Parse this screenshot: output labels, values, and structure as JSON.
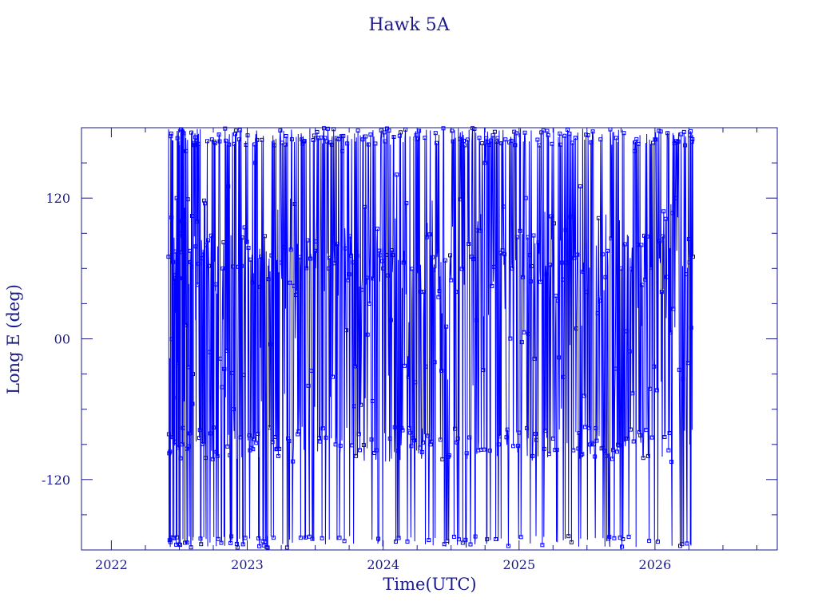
{
  "chart_data": {
    "type": "scatter",
    "title": "Hawk 5A",
    "xlabel": "Time(UTC)",
    "ylabel": "Long E (deg)",
    "xlim": [
      2021.78,
      2026.9
    ],
    "ylim": [
      -180,
      180
    ],
    "x_ticks": [
      2022,
      2023,
      2024,
      2025,
      2026
    ],
    "x_tick_labels": [
      "2022",
      "2023",
      "2024",
      "2025",
      "2026"
    ],
    "y_ticks": [
      -120,
      0,
      120
    ],
    "y_tick_labels": [
      "-120",
      "00",
      "120"
    ],
    "data_x_range": [
      2022.42,
      2026.28
    ],
    "grid": false,
    "legend": "none",
    "series_color": "#0000ff",
    "frame_color": "#1a1a8c",
    "series": [
      {
        "x": [
          2022.42,
          2022.44,
          2022.46,
          2022.48,
          2022.5,
          2022.52,
          2022.55,
          2022.58,
          2022.6,
          2022.63,
          2022.66,
          2022.7,
          2022.74,
          2022.78,
          2022.82,
          2022.86,
          2022.9,
          2022.94,
          2022.98,
          2023.02,
          2023.06,
          2023.1,
          2023.15,
          2023.2,
          2023.25,
          2023.3,
          2023.35,
          2023.4,
          2023.45,
          2023.5,
          2023.55,
          2023.6,
          2023.65,
          2023.7,
          2023.75,
          2023.8,
          2023.85,
          2023.9,
          2023.95,
          2024.0,
          2024.05,
          2024.1,
          2024.15,
          2024.2,
          2024.25,
          2024.3,
          2024.35,
          2024.4,
          2024.45,
          2024.5,
          2024.55,
          2024.6,
          2024.65,
          2024.7,
          2024.75,
          2024.8,
          2024.85,
          2024.9,
          2024.95,
          2025.0,
          2025.05,
          2025.1,
          2025.15,
          2025.2,
          2025.25,
          2025.3,
          2025.35,
          2025.4,
          2025.45,
          2025.5,
          2025.55,
          2025.6,
          2025.65,
          2025.7,
          2025.75,
          2025.8,
          2025.85,
          2025.9,
          2025.95,
          2026.0,
          2026.05,
          2026.1,
          2026.15,
          2026.2,
          2026.25,
          2026.28
        ],
        "y": [
          70,
          175,
          -170,
          120,
          90,
          -90,
          160,
          75,
          -30,
          100,
          -175,
          80,
          170,
          -100,
          60,
          130,
          -60,
          170,
          95,
          -95,
          150,
          70,
          -178,
          165,
          65,
          -85,
          115,
          170,
          -40,
          75,
          -170,
          60,
          -90,
          160,
          55,
          -100,
          170,
          30,
          -95,
          60,
          -85,
          140,
          65,
          -80,
          170,
          40,
          -90,
          75,
          -175,
          50,
          -85,
          165,
          70,
          -95,
          150,
          45,
          -90,
          170,
          60,
          -80,
          120,
          -100,
          165,
          55,
          -85,
          175,
          65,
          -95,
          130,
          40,
          -90,
          170,
          75,
          -170,
          60,
          -85,
          160,
          80,
          -100,
          170,
          40,
          -95,
          120,
          -175,
          85,
          70
        ]
      }
    ]
  }
}
